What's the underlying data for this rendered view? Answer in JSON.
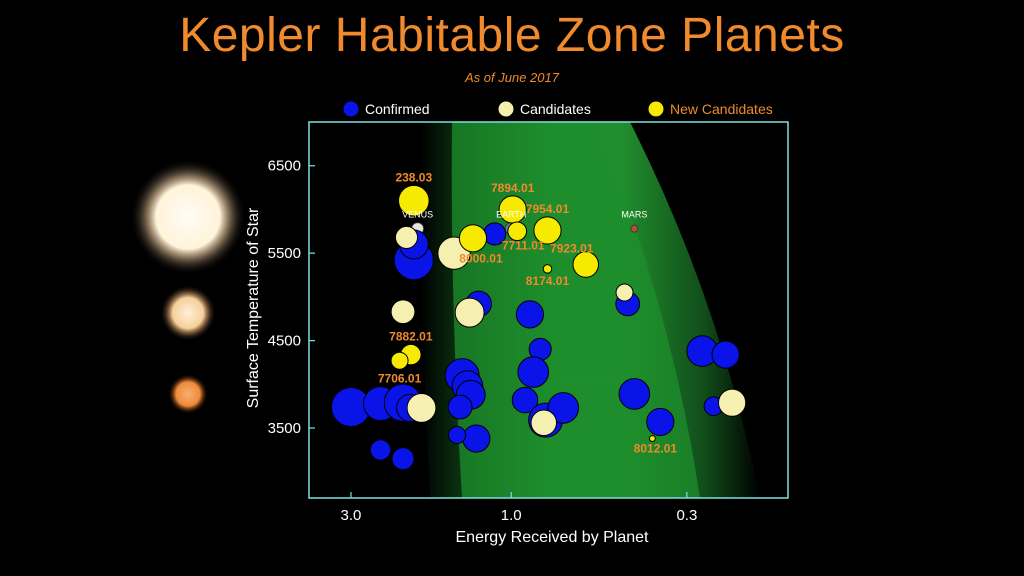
{
  "title": "Kepler Habitable Zone Planets",
  "subtitle": "As of June 2017",
  "colors": {
    "title": "#f08a2c",
    "confirmed": "#0a14e8",
    "candidates": "#f6f0b0",
    "new_candidates": "#f5ea00",
    "label_orange": "#f08a2c",
    "frame": "#7fe0e0",
    "habitable_zone": "#1f8a2f"
  },
  "stars": [
    {
      "name": "hot-star",
      "color": "#fff6e0"
    },
    {
      "name": "sun-like-star",
      "color": "#f8d8a6"
    },
    {
      "name": "cool-star",
      "color": "#f49a45"
    }
  ],
  "chart_data": {
    "type": "scatter",
    "xlabel": "Energy Received by Planet",
    "ylabel": "Surface Temperature of Star",
    "x_scale": "log",
    "x_reversed": true,
    "xlim": [
      4.0,
      0.15
    ],
    "ylim": [
      2700,
      7000
    ],
    "xticks": [
      {
        "value": 3.0,
        "label": "3.0"
      },
      {
        "value": 1.0,
        "label": "1.0"
      },
      {
        "value": 0.3,
        "label": "0.3"
      }
    ],
    "yticks": [
      {
        "value": 3500,
        "label": "3500"
      },
      {
        "value": 4500,
        "label": "4500"
      },
      {
        "value": 5500,
        "label": "5500"
      },
      {
        "value": 6500,
        "label": "6500"
      }
    ],
    "legend": [
      {
        "series": "confirmed",
        "label": "Confirmed"
      },
      {
        "series": "candidates",
        "label": "Candidates"
      },
      {
        "series": "new_candidates",
        "label": "New Candidates"
      }
    ],
    "legend_position": "top",
    "solar_system": [
      {
        "name": "VENUS",
        "energy": 1.9,
        "temp": 5780
      },
      {
        "name": "EARTH",
        "energy": 1.0,
        "temp": 5780
      },
      {
        "name": "MARS",
        "energy": 0.43,
        "temp": 5780
      }
    ],
    "series": [
      {
        "name": "Confirmed",
        "key": "confirmed",
        "points": [
          {
            "energy": 3.0,
            "temp": 3740,
            "size": 2.3
          },
          {
            "energy": 2.45,
            "temp": 3780,
            "size": 2.0
          },
          {
            "energy": 2.1,
            "temp": 3790,
            "size": 2.2
          },
          {
            "energy": 2.0,
            "temp": 3730,
            "size": 1.6
          },
          {
            "energy": 2.45,
            "temp": 3250,
            "size": 1.2
          },
          {
            "energy": 2.1,
            "temp": 3150,
            "size": 1.3
          },
          {
            "energy": 1.95,
            "temp": 5420,
            "size": 2.3
          },
          {
            "energy": 1.95,
            "temp": 5600,
            "size": 1.7
          },
          {
            "energy": 1.4,
            "temp": 4100,
            "size": 2.0
          },
          {
            "energy": 1.35,
            "temp": 3980,
            "size": 1.8
          },
          {
            "energy": 1.32,
            "temp": 3880,
            "size": 1.7
          },
          {
            "energy": 1.42,
            "temp": 3740,
            "size": 1.4
          },
          {
            "energy": 1.25,
            "temp": 4920,
            "size": 1.5
          },
          {
            "energy": 1.27,
            "temp": 3380,
            "size": 1.6
          },
          {
            "energy": 1.45,
            "temp": 3420,
            "size": 1.0
          },
          {
            "energy": 1.12,
            "temp": 5720,
            "size": 1.3
          },
          {
            "energy": 0.88,
            "temp": 4800,
            "size": 1.6
          },
          {
            "energy": 0.82,
            "temp": 4400,
            "size": 1.3
          },
          {
            "energy": 0.86,
            "temp": 4140,
            "size": 1.8
          },
          {
            "energy": 0.91,
            "temp": 3820,
            "size": 1.5
          },
          {
            "energy": 0.79,
            "temp": 3590,
            "size": 2.0
          },
          {
            "energy": 0.7,
            "temp": 3730,
            "size": 1.8
          },
          {
            "energy": 0.45,
            "temp": 4920,
            "size": 1.4
          },
          {
            "energy": 0.43,
            "temp": 3890,
            "size": 1.8
          },
          {
            "energy": 0.36,
            "temp": 3570,
            "size": 1.6
          },
          {
            "energy": 0.27,
            "temp": 4380,
            "size": 1.8
          },
          {
            "energy": 0.23,
            "temp": 4340,
            "size": 1.6
          },
          {
            "energy": 0.25,
            "temp": 3750,
            "size": 1.1
          }
        ]
      },
      {
        "name": "Candidates",
        "key": "candidates",
        "points": [
          {
            "energy": 2.05,
            "temp": 5680,
            "size": 1.3
          },
          {
            "energy": 2.1,
            "temp": 4830,
            "size": 1.4
          },
          {
            "energy": 1.85,
            "temp": 3730,
            "size": 1.7
          },
          {
            "energy": 1.48,
            "temp": 5500,
            "size": 1.9
          },
          {
            "energy": 1.33,
            "temp": 4820,
            "size": 1.7
          },
          {
            "energy": 0.8,
            "temp": 3560,
            "size": 1.5
          },
          {
            "energy": 0.46,
            "temp": 5050,
            "size": 1.0
          },
          {
            "energy": 0.22,
            "temp": 3790,
            "size": 1.6
          }
        ]
      },
      {
        "name": "New Candidates",
        "key": "new_candidates",
        "points": [
          {
            "id": "238.03",
            "energy": 1.95,
            "temp": 6100,
            "size": 1.8
          },
          {
            "id": "7894.01",
            "energy": 0.99,
            "temp": 6000,
            "size": 1.6
          },
          {
            "id": "7954.01",
            "energy": 0.78,
            "temp": 5760,
            "size": 1.6
          },
          {
            "id": "7711.01",
            "energy": 0.96,
            "temp": 5750,
            "size": 1.1
          },
          {
            "id": "8000.01",
            "energy": 1.3,
            "temp": 5670,
            "size": 1.6
          },
          {
            "id": "7923.01",
            "energy": 0.6,
            "temp": 5370,
            "size": 1.5
          },
          {
            "id": "8174.01",
            "energy": 0.78,
            "temp": 5320,
            "size": 0.5
          },
          {
            "id": "7882.01",
            "energy": 1.99,
            "temp": 4340,
            "size": 1.2
          },
          {
            "id": "7706.01",
            "energy": 2.15,
            "temp": 4270,
            "size": 1.0
          },
          {
            "id": "8012.01",
            "energy": 0.38,
            "temp": 3380,
            "size": 0.35
          }
        ]
      }
    ]
  }
}
